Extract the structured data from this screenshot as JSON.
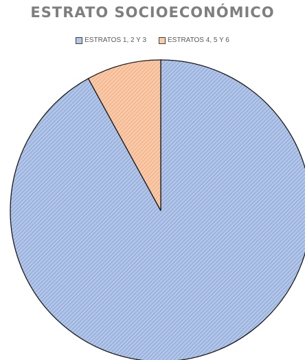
{
  "chart_data": {
    "type": "pie",
    "title": "ESTRATO SOCIOECONÓMICO",
    "legend_position": "top",
    "slices": [
      {
        "label": "ESTRATOS 1, 2 Y 3",
        "value": 92,
        "color": "#b4c7e7",
        "hatch": "#8faadc"
      },
      {
        "label": "ESTRATOS 4, 5 Y 6",
        "value": 8,
        "color": "#f8cbad",
        "hatch": "#f4b183"
      }
    ]
  }
}
